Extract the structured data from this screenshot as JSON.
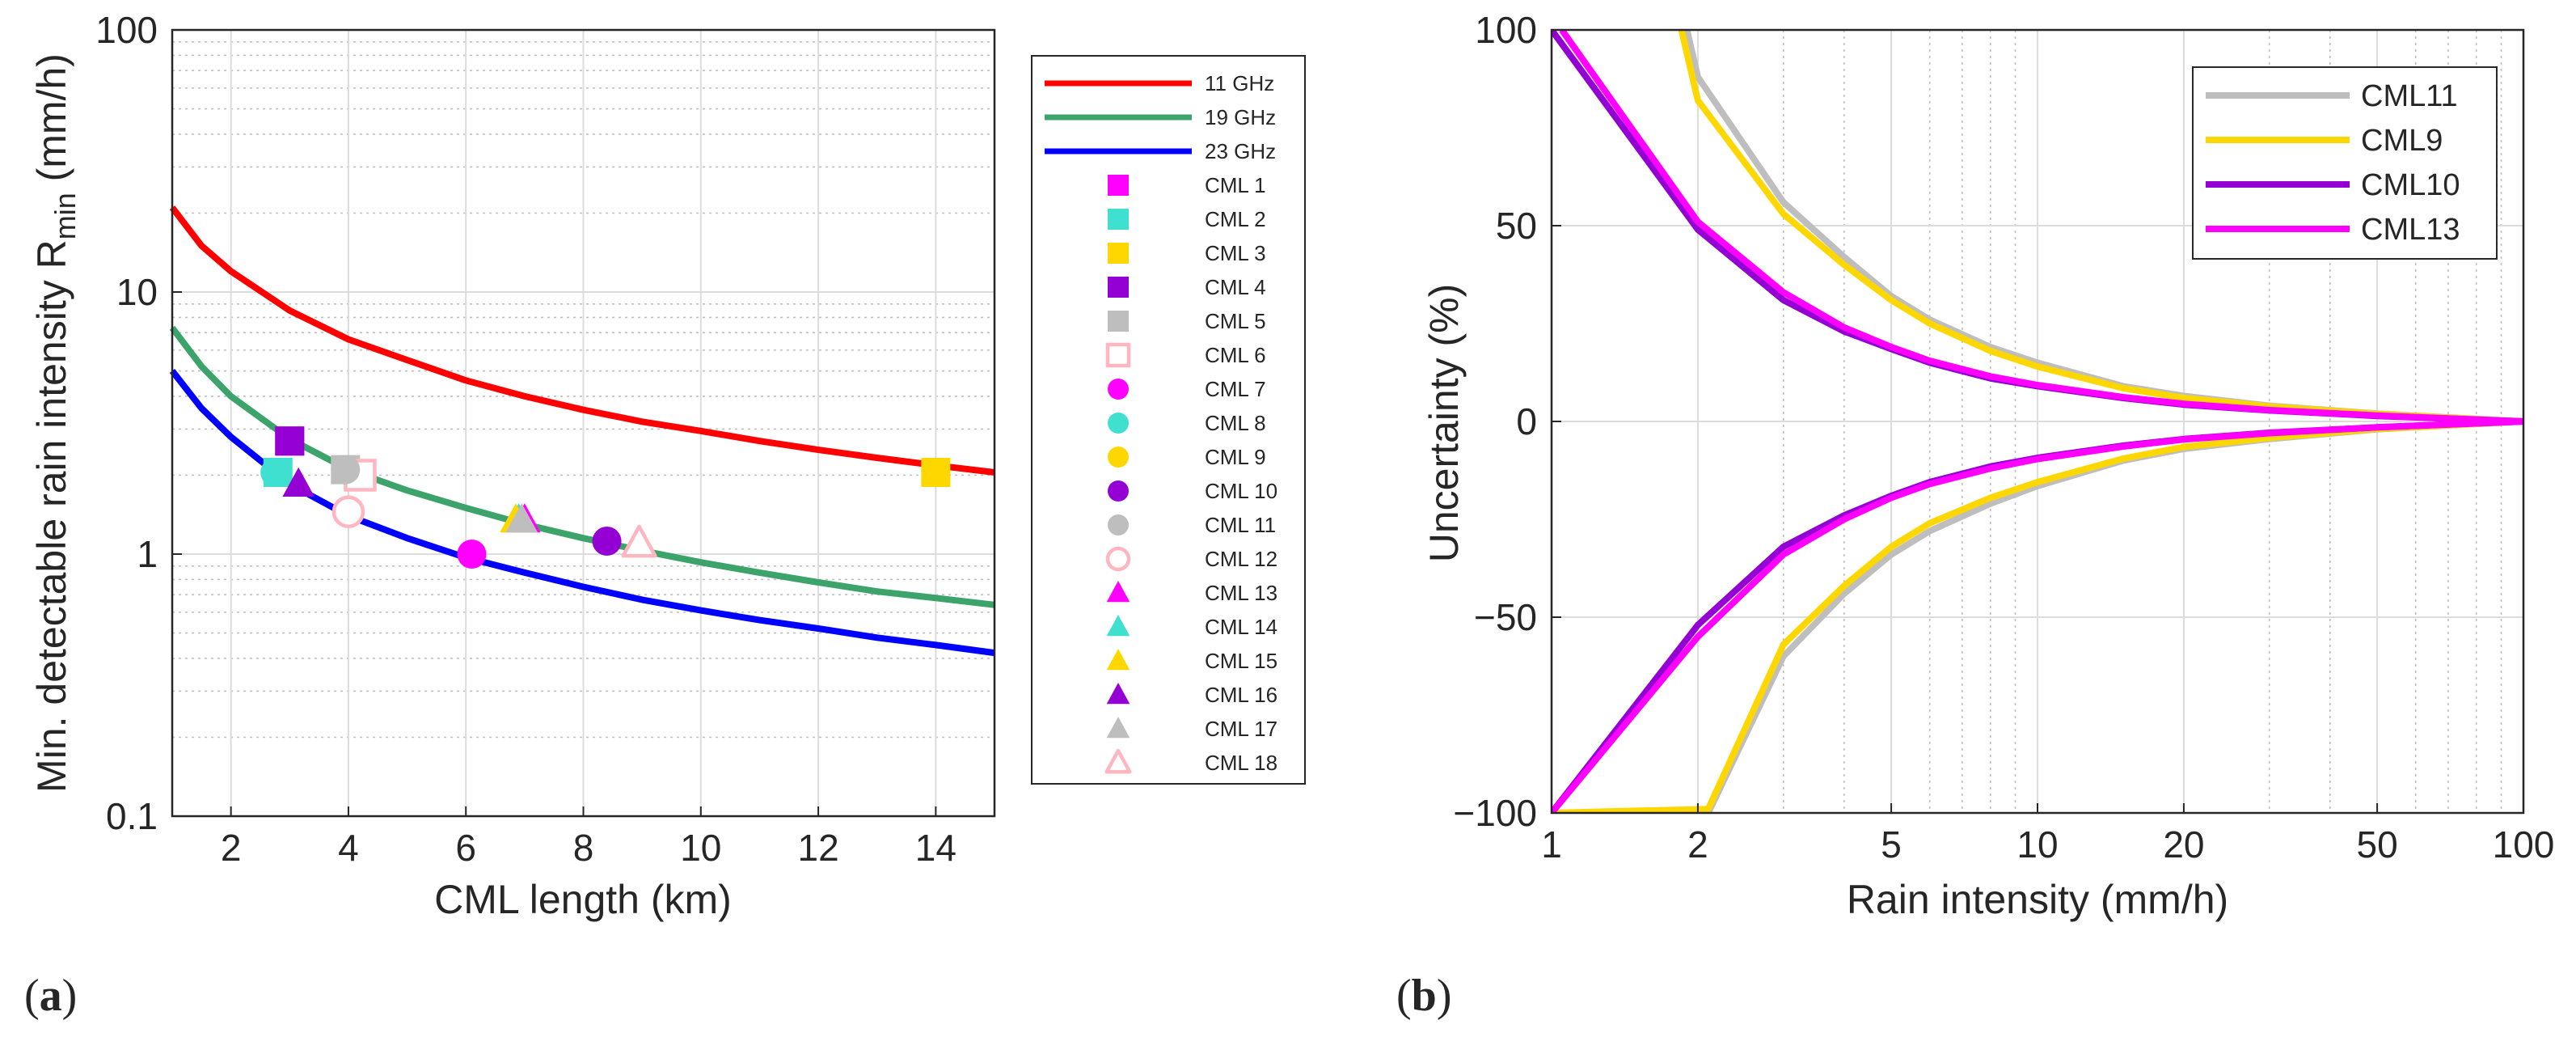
{
  "chart_data": [
    {
      "id": "a",
      "panel_label_open": "(",
      "panel_label_letter": "a",
      "panel_label_close": ")",
      "type": "line",
      "xscale": "linear",
      "yscale": "log",
      "xlim": [
        1,
        15
      ],
      "ylim": [
        0.1,
        100
      ],
      "xticks": [
        2,
        4,
        6,
        8,
        10,
        12,
        14
      ],
      "yticks": [
        0.1,
        1,
        10,
        100
      ],
      "xtick_labels": [
        "2",
        "4",
        "6",
        "8",
        "10",
        "12",
        "14"
      ],
      "ytick_labels": [
        "0.1",
        "1",
        "10",
        "100"
      ],
      "xlabel": "CML length (km)",
      "ylabel_main": "Min. detectable rain intensity R",
      "ylabel_sub": "min",
      "ylabel_unit": " (mm/h)",
      "grid": true,
      "legend_position": "outside-right",
      "series": [
        {
          "name": "11 GHz",
          "color": "#ff0000",
          "x": [
            1,
            1.5,
            2,
            3,
            4,
            5,
            6,
            7,
            8,
            9,
            10,
            11,
            12,
            13,
            14,
            15
          ],
          "y": [
            21,
            15,
            12,
            8.5,
            6.6,
            5.5,
            4.6,
            4.0,
            3.55,
            3.2,
            2.95,
            2.7,
            2.5,
            2.33,
            2.18,
            2.05
          ]
        },
        {
          "name": "19 GHz",
          "color": "#3ca46b",
          "x": [
            1,
            1.5,
            2,
            3,
            4,
            5,
            6,
            7,
            8,
            9,
            10,
            11,
            12,
            13,
            14,
            15
          ],
          "y": [
            7.3,
            5.2,
            4.0,
            2.75,
            2.1,
            1.75,
            1.5,
            1.3,
            1.15,
            1.03,
            0.93,
            0.85,
            0.78,
            0.72,
            0.68,
            0.64
          ]
        },
        {
          "name": "23 GHz",
          "color": "#0000ff",
          "x": [
            1,
            1.5,
            2,
            3,
            4,
            5,
            6,
            7,
            8,
            9,
            10,
            11,
            12,
            13,
            14,
            15
          ],
          "y": [
            5.0,
            3.6,
            2.8,
            1.85,
            1.4,
            1.15,
            0.97,
            0.85,
            0.75,
            0.67,
            0.61,
            0.56,
            0.52,
            0.48,
            0.45,
            0.42
          ]
        }
      ],
      "points": [
        {
          "name": "CML 1",
          "x": 3.0,
          "y": 2.7,
          "marker": "square",
          "filled": true,
          "color": "#ff00ff"
        },
        {
          "name": "CML 2",
          "x": 2.8,
          "y": 2.05,
          "marker": "square",
          "filled": true,
          "color": "#40e0d0"
        },
        {
          "name": "CML 3",
          "x": 14.0,
          "y": 2.05,
          "marker": "square",
          "filled": true,
          "color": "#ffd700"
        },
        {
          "name": "CML 4",
          "x": 3.0,
          "y": 2.7,
          "marker": "square",
          "filled": true,
          "color": "#9400d3"
        },
        {
          "name": "CML 5",
          "x": 3.95,
          "y": 2.1,
          "marker": "square",
          "filled": true,
          "color": "#bebebe"
        },
        {
          "name": "CML 6",
          "x": 4.2,
          "y": 2.0,
          "marker": "square",
          "filled": false,
          "color": "#ffb6c1"
        },
        {
          "name": "CML 7",
          "x": 6.1,
          "y": 1.0,
          "marker": "circle",
          "filled": true,
          "color": "#ff00ff"
        },
        {
          "name": "CML 8",
          "x": 2.75,
          "y": 2.05,
          "marker": "circle",
          "filled": true,
          "color": "#40e0d0"
        },
        {
          "name": "CML 9",
          "x": 14.0,
          "y": 2.05,
          "marker": "circle",
          "filled": true,
          "color": "#ffd700"
        },
        {
          "name": "CML 10",
          "x": 8.4,
          "y": 1.12,
          "marker": "circle",
          "filled": true,
          "color": "#9400d3"
        },
        {
          "name": "CML 11",
          "x": 3.95,
          "y": 2.1,
          "marker": "circle",
          "filled": true,
          "color": "#bebebe"
        },
        {
          "name": "CML 12",
          "x": 4.0,
          "y": 1.45,
          "marker": "circle",
          "filled": false,
          "color": "#ffb6c1"
        },
        {
          "name": "CML 13",
          "x": 7.0,
          "y": 1.35,
          "marker": "triangle",
          "filled": true,
          "color": "#ff00ff"
        },
        {
          "name": "CML 14",
          "x": 6.9,
          "y": 1.35,
          "marker": "triangle",
          "filled": true,
          "color": "#40e0d0"
        },
        {
          "name": "CML 15",
          "x": 6.85,
          "y": 1.35,
          "marker": "triangle",
          "filled": true,
          "color": "#ffd700"
        },
        {
          "name": "CML 16",
          "x": 3.15,
          "y": 1.85,
          "marker": "triangle",
          "filled": true,
          "color": "#9400d3"
        },
        {
          "name": "CML 17",
          "x": 6.95,
          "y": 1.35,
          "marker": "triangle",
          "filled": true,
          "color": "#bebebe"
        },
        {
          "name": "CML 18",
          "x": 8.95,
          "y": 1.1,
          "marker": "triangle",
          "filled": false,
          "color": "#ffb6c1"
        }
      ]
    },
    {
      "id": "b",
      "panel_label_open": "(",
      "panel_label_letter": "b",
      "panel_label_close": ")",
      "type": "line",
      "xscale": "log",
      "yscale": "linear",
      "xlim": [
        1,
        100
      ],
      "ylim": [
        -100,
        100
      ],
      "xticks": [
        1,
        2,
        5,
        10,
        20,
        50,
        100
      ],
      "yticks": [
        -100,
        -50,
        0,
        50,
        100
      ],
      "xtick_labels": [
        "1",
        "2",
        "5",
        "10",
        "20",
        "50",
        "100"
      ],
      "ytick_labels": [
        "−100",
        "−50",
        "0",
        "50",
        "100"
      ],
      "xlabel": "Rain intensity (mm/h)",
      "ylabel": "Uncertainty (%)",
      "grid": true,
      "legend_position": "top-right",
      "series": [
        {
          "name": "CML11",
          "color": "#bebebe",
          "x": [
            1.9,
            2,
            3,
            4,
            5,
            6,
            8,
            10,
            15,
            20,
            30,
            50,
            100
          ],
          "upper": [
            100,
            88,
            56,
            42,
            32,
            26,
            19,
            15,
            9,
            6.5,
            4,
            2,
            0
          ],
          "lower_x": [
            1,
            2.1,
            3,
            4,
            5,
            6,
            8,
            10,
            15,
            20,
            30,
            50,
            100
          ],
          "lower": [
            -100,
            -100,
            -60,
            -44,
            -34,
            -28,
            -21,
            -16.5,
            -10,
            -7,
            -4.5,
            -2,
            0
          ]
        },
        {
          "name": "CML9",
          "color": "#ffd700",
          "x": [
            1.85,
            2,
            3,
            4,
            5,
            6,
            8,
            10,
            15,
            20,
            30,
            50,
            100
          ],
          "upper": [
            100,
            82,
            53,
            40,
            31,
            25,
            18,
            14,
            8.5,
            6,
            3.8,
            1.9,
            0
          ],
          "lower_x": [
            1,
            2.1,
            3,
            4,
            5,
            6,
            8,
            10,
            15,
            20,
            30,
            50,
            100
          ],
          "lower": [
            -100,
            -99,
            -57,
            -42,
            -32,
            -26,
            -19.5,
            -15.5,
            -9.5,
            -6.5,
            -4.2,
            -1.9,
            0
          ]
        },
        {
          "name": "CML10",
          "color": "#9400d3",
          "x": [
            1,
            2,
            3,
            4,
            5,
            6,
            8,
            10,
            15,
            20,
            30,
            50,
            100
          ],
          "upper": [
            100,
            49,
            31,
            23,
            18.5,
            15,
            11,
            9,
            6,
            4.3,
            2.8,
            1.4,
            0
          ],
          "lower_x": [
            1,
            2,
            3,
            4,
            5,
            6,
            8,
            10,
            15,
            20,
            30,
            50,
            100
          ],
          "lower": [
            -100,
            -52,
            -32,
            -24,
            -19,
            -15.5,
            -11.5,
            -9.3,
            -6.2,
            -4.5,
            -2.9,
            -1.5,
            0
          ]
        },
        {
          "name": "CML13",
          "color": "#ff00ff",
          "x": [
            1.05,
            2,
            3,
            4,
            5,
            6,
            8,
            10,
            15,
            20,
            30,
            50,
            100
          ],
          "upper": [
            100,
            51,
            33,
            24,
            19,
            15.5,
            11.5,
            9.3,
            6.2,
            4.5,
            2.9,
            1.5,
            0
          ],
          "lower_x": [
            1,
            2,
            3,
            4,
            5,
            6,
            8,
            10,
            15,
            20,
            30,
            50,
            100
          ],
          "lower": [
            -100,
            -55,
            -34,
            -25,
            -19.5,
            -16,
            -12,
            -9.6,
            -6.4,
            -4.6,
            -3,
            -1.5,
            0
          ]
        }
      ]
    }
  ]
}
